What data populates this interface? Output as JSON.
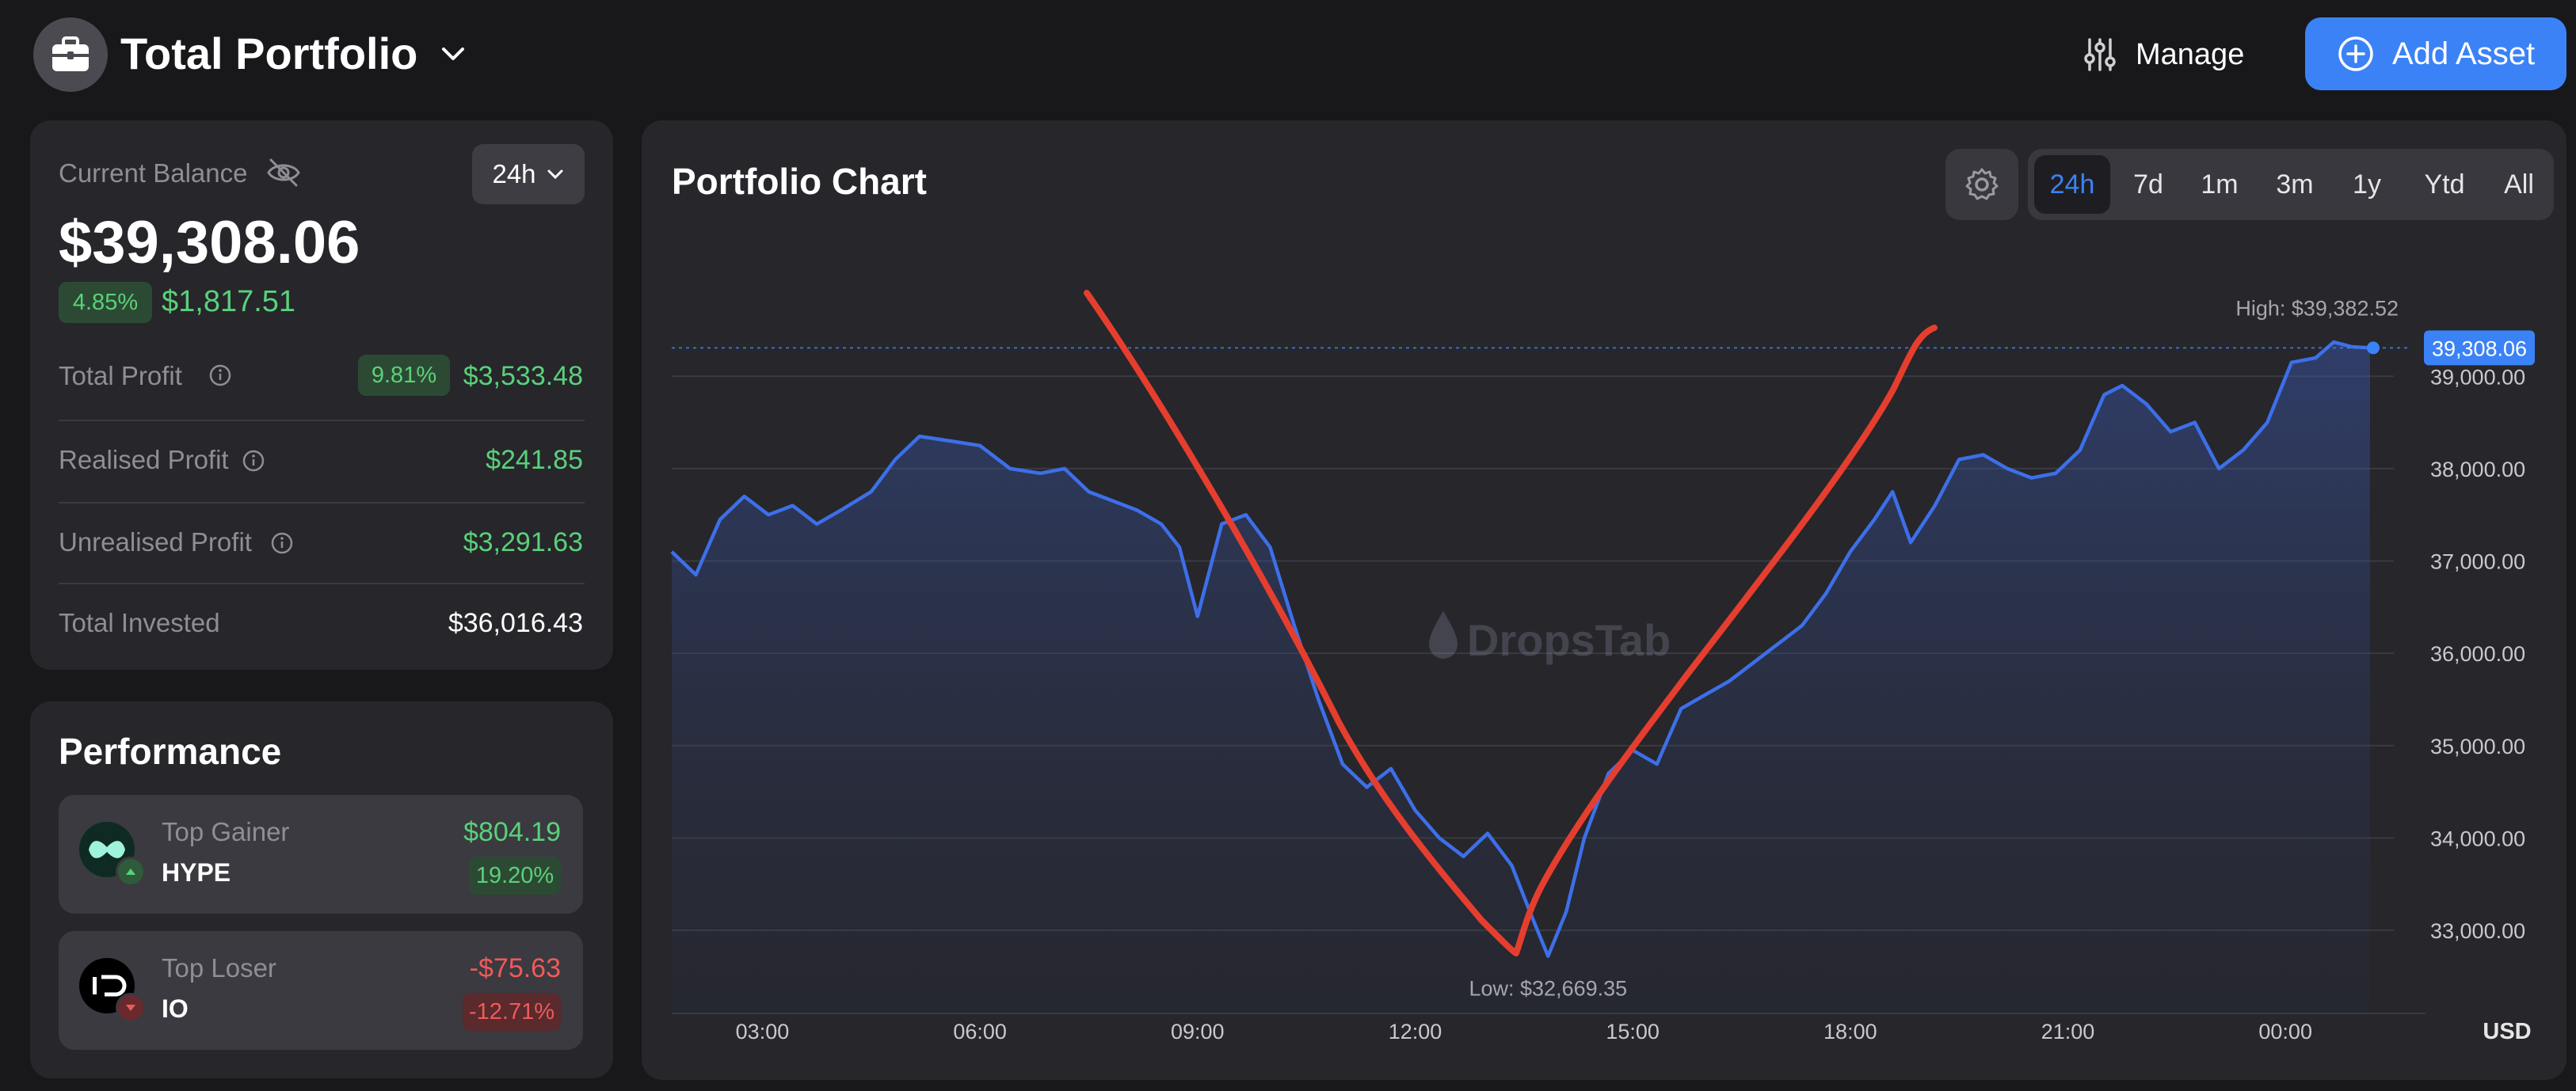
{
  "header": {
    "title": "Total Portfolio",
    "manage_label": "Manage",
    "add_asset_label": "Add Asset"
  },
  "balance": {
    "label": "Current Balance",
    "period": "24h",
    "amount": "$39,308.06",
    "change_pct": "4.85%",
    "change_amount": "$1,817.51",
    "rows": [
      {
        "label": "Total Profit",
        "pct": "9.81%",
        "value": "$3,533.48"
      },
      {
        "label": "Realised Profit",
        "value": "$241.85"
      },
      {
        "label": "Unrealised Profit",
        "value": "$3,291.63"
      },
      {
        "label": "Total Invested",
        "value": "$36,016.43"
      }
    ]
  },
  "performance": {
    "title": "Performance",
    "gainer": {
      "label": "Top Gainer",
      "symbol": "HYPE",
      "amount": "$804.19",
      "pct": "19.20%"
    },
    "loser": {
      "label": "Top Loser",
      "symbol": "IO",
      "amount": "-$75.63",
      "pct": "-12.71%"
    }
  },
  "chart": {
    "title": "Portfolio Chart",
    "ranges": [
      "24h",
      "7d",
      "1m",
      "3m",
      "1y",
      "Ytd",
      "All"
    ],
    "active_range": "24h",
    "watermark": "DropsTab",
    "currency": "USD",
    "high_label": "High: $39,382.52",
    "low_label": "Low: $32,669.35",
    "current_label": "39,308.06"
  },
  "colors": {
    "accent": "#3b82f6",
    "positive": "#5ad17a",
    "negative": "#ef5a5a",
    "annotation": "#e53e2f"
  },
  "chart_data": {
    "type": "line",
    "xlabel": "",
    "ylabel": "",
    "x_ticks": [
      "03:00",
      "06:00",
      "09:00",
      "12:00",
      "15:00",
      "18:00",
      "21:00",
      "00:00"
    ],
    "y_ticks": [
      33000,
      34000,
      35000,
      36000,
      37000,
      38000,
      39000
    ],
    "y_tick_labels": [
      "33,000.00",
      "34,000.00",
      "35,000.00",
      "36,000.00",
      "37,000.00",
      "38,000.00",
      "39,000.00"
    ],
    "ylim": [
      32100,
      39800
    ],
    "high": 39382.52,
    "low": 32669.35,
    "current": 39308.06,
    "grid": true,
    "series": [
      {
        "points": [
          [
            "01:45",
            37100
          ],
          [
            "02:05",
            36850
          ],
          [
            "02:25",
            37450
          ],
          [
            "02:45",
            37700
          ],
          [
            "03:05",
            37500
          ],
          [
            "03:25",
            37600
          ],
          [
            "03:45",
            37400
          ],
          [
            "04:05",
            37550
          ],
          [
            "04:30",
            37750
          ],
          [
            "04:50",
            38100
          ],
          [
            "05:10",
            38350
          ],
          [
            "05:35",
            38300
          ],
          [
            "06:00",
            38250
          ],
          [
            "06:25",
            38000
          ],
          [
            "06:50",
            37950
          ],
          [
            "07:10",
            38000
          ],
          [
            "07:30",
            37750
          ],
          [
            "07:50",
            37650
          ],
          [
            "08:10",
            37550
          ],
          [
            "08:30",
            37400
          ],
          [
            "08:45",
            37150
          ],
          [
            "09:00",
            36400
          ],
          [
            "09:20",
            37400
          ],
          [
            "09:40",
            37500
          ],
          [
            "10:00",
            37150
          ],
          [
            "10:20",
            36300
          ],
          [
            "10:40",
            35500
          ],
          [
            "11:00",
            34800
          ],
          [
            "11:20",
            34550
          ],
          [
            "11:40",
            34750
          ],
          [
            "12:00",
            34300
          ],
          [
            "12:20",
            34000
          ],
          [
            "12:40",
            33800
          ],
          [
            "13:00",
            34050
          ],
          [
            "13:20",
            33700
          ],
          [
            "13:35",
            33200
          ],
          [
            "13:50",
            32720
          ],
          [
            "14:05",
            33200
          ],
          [
            "14:20",
            34000
          ],
          [
            "14:40",
            34700
          ],
          [
            "15:00",
            34950
          ],
          [
            "15:20",
            34800
          ],
          [
            "15:40",
            35400
          ],
          [
            "16:00",
            35550
          ],
          [
            "16:20",
            35700
          ],
          [
            "16:40",
            35900
          ],
          [
            "17:00",
            36100
          ],
          [
            "17:20",
            36300
          ],
          [
            "17:40",
            36650
          ],
          [
            "18:00",
            37100
          ],
          [
            "18:20",
            37450
          ],
          [
            "18:35",
            37750
          ],
          [
            "18:50",
            37200
          ],
          [
            "19:10",
            37600
          ],
          [
            "19:30",
            38100
          ],
          [
            "19:50",
            38150
          ],
          [
            "20:10",
            38000
          ],
          [
            "20:30",
            37900
          ],
          [
            "20:50",
            37950
          ],
          [
            "21:10",
            38200
          ],
          [
            "21:30",
            38800
          ],
          [
            "21:45",
            38900
          ],
          [
            "22:05",
            38700
          ],
          [
            "22:25",
            38400
          ],
          [
            "22:45",
            38500
          ],
          [
            "23:05",
            38000
          ],
          [
            "23:25",
            38200
          ],
          [
            "23:45",
            38500
          ],
          [
            "00:05",
            39150
          ],
          [
            "00:25",
            39200
          ],
          [
            "00:40",
            39370
          ],
          [
            "00:55",
            39320
          ],
          [
            "01:10",
            39308
          ]
        ]
      }
    ]
  }
}
